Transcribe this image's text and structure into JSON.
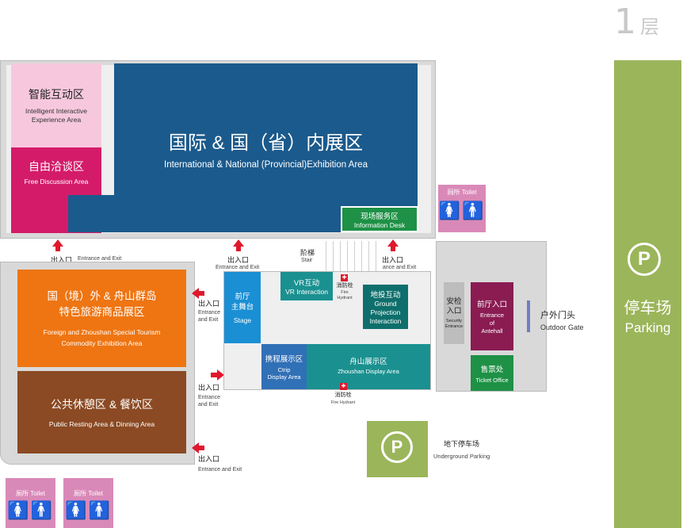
{
  "floor": {
    "number": "1",
    "label": "层"
  },
  "parking_side": {
    "zh": "停车场",
    "en": "Parking",
    "icon": "parking-icon"
  },
  "zones": {
    "smart": {
      "zh": "智能互动区",
      "en": "Intelligent Interactive\nExperience Area"
    },
    "free": {
      "zh": "自由洽谈区",
      "en": "Free Discussion Area"
    },
    "intl": {
      "zh": "国际 & 国（省）内展区",
      "en": "International & National (Provincial)Exhibition Area"
    },
    "info": {
      "zh": "现场服务区",
      "en": "Information Desk"
    },
    "foreign": {
      "zh": "国（境）外 & 舟山群岛\n特色旅游商品展区",
      "en": "Foreign and Zhoushan Special Tourism\nCommodity Exhibition Area"
    },
    "rest": {
      "zh": "公共休憩区 & 餐饮区",
      "en": "Public Resting Area & Dinning Area"
    },
    "stage": {
      "zh": "前厅\n主舞台",
      "en": "Stage"
    },
    "vr": {
      "zh": "VR互动",
      "en": "VR Interaction"
    },
    "ground": {
      "zh": "地投互动",
      "en": "Ground\nProjection\nInteraction"
    },
    "ctrip": {
      "zh": "携程展示区",
      "en": "Ctrip\nDisplay Area"
    },
    "zhoushan": {
      "zh": "舟山展示区",
      "en": "Zhoushan Display Area"
    },
    "security": {
      "zh": "安检\n入口",
      "en": "Security\nEntrance"
    },
    "antehall": {
      "zh": "前厅入口",
      "en": "Entrance\nof\nAntehall"
    },
    "ticket": {
      "zh": "售票处",
      "en": "Ticket Office"
    }
  },
  "labels": {
    "stair_zh": "阶梯",
    "stair_en": "Stair",
    "hydrant_zh": "消防栓",
    "hydrant_en": "Fire\nHydrant",
    "hydrant2_zh": "消防栓",
    "hydrant2_en": "Fire Hydrant",
    "outdoor_zh": "户外门头",
    "outdoor_en": "Outdoor Gate",
    "underground_zh": "地下停车场",
    "underground_en": "Underground Parking",
    "exit_zh": "出入口",
    "exit_en": "Entrance and Exit",
    "exit_en_stack": "Entrance\nand Exit",
    "toilet": "厕所  Toilet"
  },
  "colors": {
    "navy": "#1b5a8c",
    "pink_light": "#f7c8dd",
    "magenta": "#d41b6a",
    "green": "#1e9146",
    "orange": "#ee7512",
    "brown": "#8b4a23",
    "sky": "#1a8fd4",
    "teal": "#1a9190",
    "teal_dark": "#0e6f6c",
    "ctrip": "#3070b7",
    "maroon": "#8a1c52",
    "olive": "#9bb55a",
    "toilet": "#d989b8",
    "arrow": "#e0182d"
  }
}
